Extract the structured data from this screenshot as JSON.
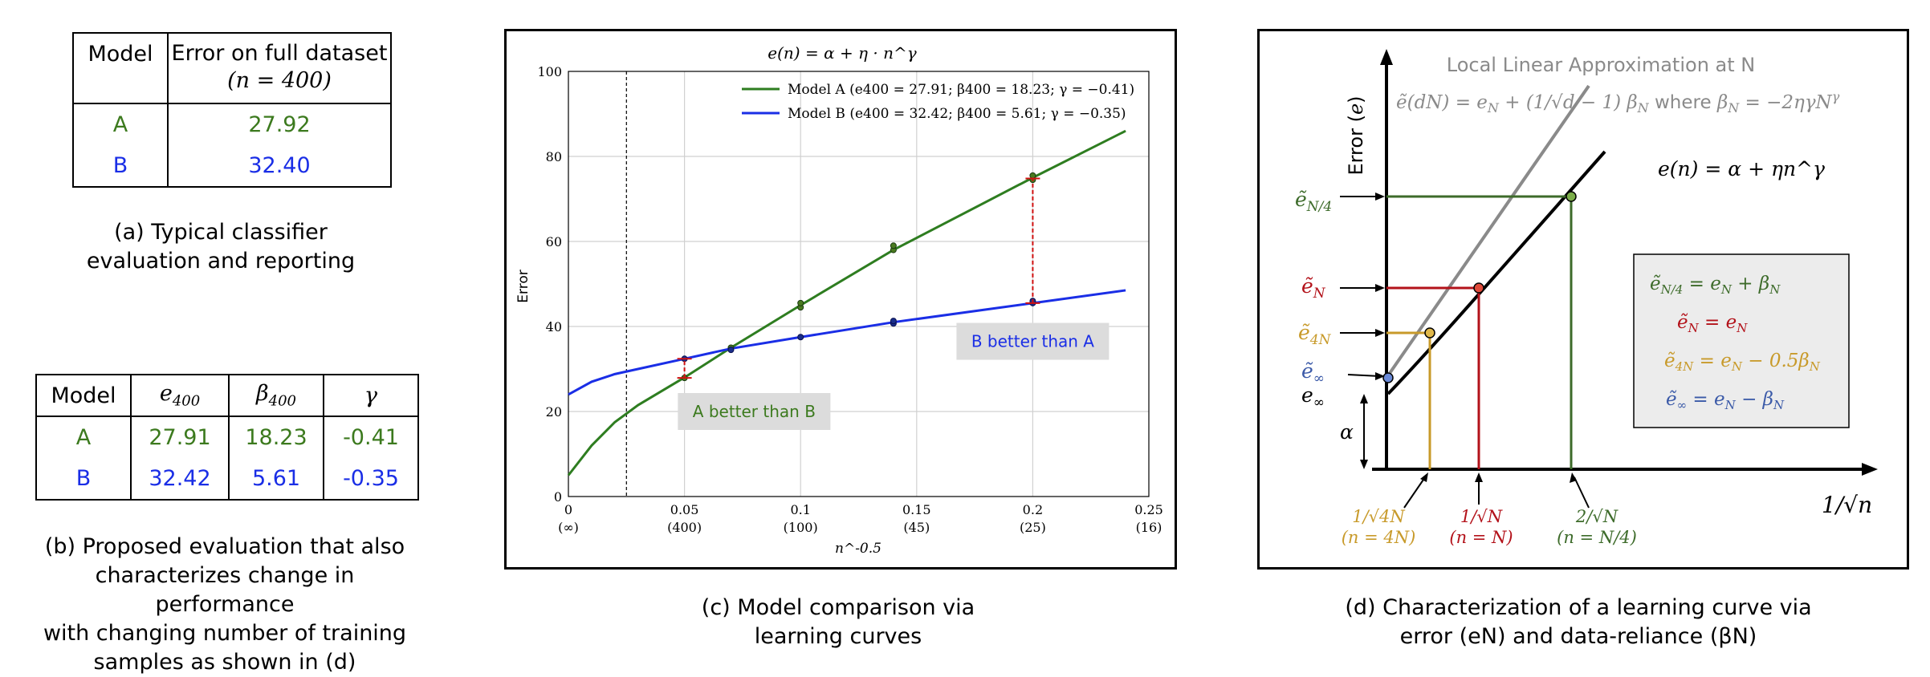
{
  "table_a": {
    "header_model": "Model",
    "header_error": "Error on full dataset",
    "header_error_sub": "(n = 400)",
    "rows": [
      {
        "model": "A",
        "error": "27.92"
      },
      {
        "model": "B",
        "error": "32.40"
      }
    ],
    "caption_line1": "(a) Typical classifier",
    "caption_line2": "evaluation and reporting"
  },
  "table_b": {
    "headers": [
      "Model",
      "e400",
      "β400",
      "γ"
    ],
    "rows": [
      {
        "model": "A",
        "e": "27.91",
        "beta": "18.23",
        "gamma": "-0.41"
      },
      {
        "model": "B",
        "e": "32.42",
        "beta": "5.61",
        "gamma": "-0.35"
      }
    ],
    "caption_lines": [
      "(b) Proposed evaluation that also",
      "characterizes change in performance",
      "with changing number of training",
      "samples as shown in (d)"
    ]
  },
  "chart_data": {
    "type": "line",
    "title": "e(n) = α + η · n^γ",
    "xlabel": "n^-0.5",
    "ylabel": "Error",
    "xlim": [
      0,
      0.25
    ],
    "ylim": [
      0,
      100
    ],
    "x_ticks": [
      {
        "value": 0,
        "label": "0",
        "sub": "(∞)"
      },
      {
        "value": 0.05,
        "label": "0.05",
        "sub": "(400)"
      },
      {
        "value": 0.1,
        "label": "0.1",
        "sub": "(100)"
      },
      {
        "value": 0.15,
        "label": "0.15",
        "sub": "(45)"
      },
      {
        "value": 0.2,
        "label": "0.2",
        "sub": "(25)"
      },
      {
        "value": 0.25,
        "label": "0.25",
        "sub": "(16)"
      }
    ],
    "y_ticks": [
      0,
      20,
      40,
      60,
      80,
      100
    ],
    "grid": true,
    "legend_position": "top-right",
    "vertical_line_x": 0.025,
    "series": [
      {
        "name": "Model A (e400 = 27.91; β400 = 18.23; γ = −0.41)",
        "color": "#2e7d20",
        "x": [
          0,
          0.01,
          0.02,
          0.03,
          0.05,
          0.07,
          0.1,
          0.14,
          0.2,
          0.24
        ],
        "y": [
          5,
          12,
          17.5,
          21.5,
          28,
          35,
          45,
          58,
          75,
          86
        ]
      },
      {
        "name": "Model B (e400 = 32.42; β400 = 5.61; γ = −0.35)",
        "color": "#1a2ee6",
        "x": [
          0,
          0.01,
          0.02,
          0.03,
          0.05,
          0.07,
          0.1,
          0.14,
          0.2,
          0.24
        ],
        "y": [
          24,
          27,
          28.8,
          30,
          32.4,
          34.8,
          37.5,
          41,
          45.5,
          48.5
        ]
      }
    ],
    "points_a": [
      {
        "x": 0.05,
        "y": 27.9
      },
      {
        "x": 0.07,
        "y": 35
      },
      {
        "x": 0.1,
        "y": 44.5
      },
      {
        "x": 0.1,
        "y": 45.5
      },
      {
        "x": 0.14,
        "y": 58
      },
      {
        "x": 0.14,
        "y": 59
      },
      {
        "x": 0.2,
        "y": 74.5
      },
      {
        "x": 0.2,
        "y": 75.5
      }
    ],
    "points_b": [
      {
        "x": 0.05,
        "y": 32.4
      },
      {
        "x": 0.07,
        "y": 34.5
      },
      {
        "x": 0.1,
        "y": 37.5
      },
      {
        "x": 0.14,
        "y": 40.7
      },
      {
        "x": 0.14,
        "y": 41.3
      },
      {
        "x": 0.2,
        "y": 45.5
      },
      {
        "x": 0.2,
        "y": 46
      }
    ],
    "diff_markers": [
      {
        "x": 0.05,
        "y1": 27.9,
        "y2": 32.4
      },
      {
        "x": 0.2,
        "y1": 45.5,
        "y2": 74.8
      }
    ],
    "annotations": [
      {
        "text": "A better than B",
        "color": "#3c7a1e",
        "x": 0.08,
        "y": 20
      },
      {
        "text": "B better than A",
        "color": "#1a2ee6",
        "x": 0.2,
        "y": 36.5
      }
    ],
    "caption_lines": [
      "(c) Model comparison via",
      "learning curves"
    ]
  },
  "diagram_d": {
    "title_line1": "Local Linear Approximation at N",
    "title_line2": "ẽ(dN) = e_N + (1/√d − 1) β_N   where  β_N = −2ηγN^γ",
    "y_axis_label": "Error (e)",
    "x_axis_label": "1/√n",
    "curve_label": "e(n) = α + ηn^γ",
    "left_labels": [
      "ẽN/4",
      "ẽN",
      "ẽ4N",
      "ẽ∞",
      "e∞",
      "α"
    ],
    "bottom_labels": [
      {
        "line1": "1/√4N",
        "line2": "(n = 4N)",
        "color": "#c89a2a"
      },
      {
        "line1": "1/√N",
        "line2": "(n = N)",
        "color": "#b3121a"
      },
      {
        "line1": "2/√N",
        "line2": "(n = N/4)",
        "color": "#3d6b2a"
      }
    ],
    "legend_box": [
      {
        "text": "ẽN/4 = eN + βN",
        "color": "#3d6b2a"
      },
      {
        "text": "ẽN = eN",
        "color": "#b3121a"
      },
      {
        "text": "ẽ4N = eN − 0.5βN",
        "color": "#c89a2a"
      },
      {
        "text": "ẽ∞ = eN − βN",
        "color": "#3b5aa8"
      }
    ],
    "colors": {
      "green": "#3d6b2a",
      "red": "#b3121a",
      "gold": "#c89a2a",
      "blue": "#3b5aa8",
      "gray": "#8a8a8a"
    },
    "caption_lines": [
      "(d) Characterization of a learning curve via",
      "error (eN) and data-reliance (βN)"
    ]
  }
}
